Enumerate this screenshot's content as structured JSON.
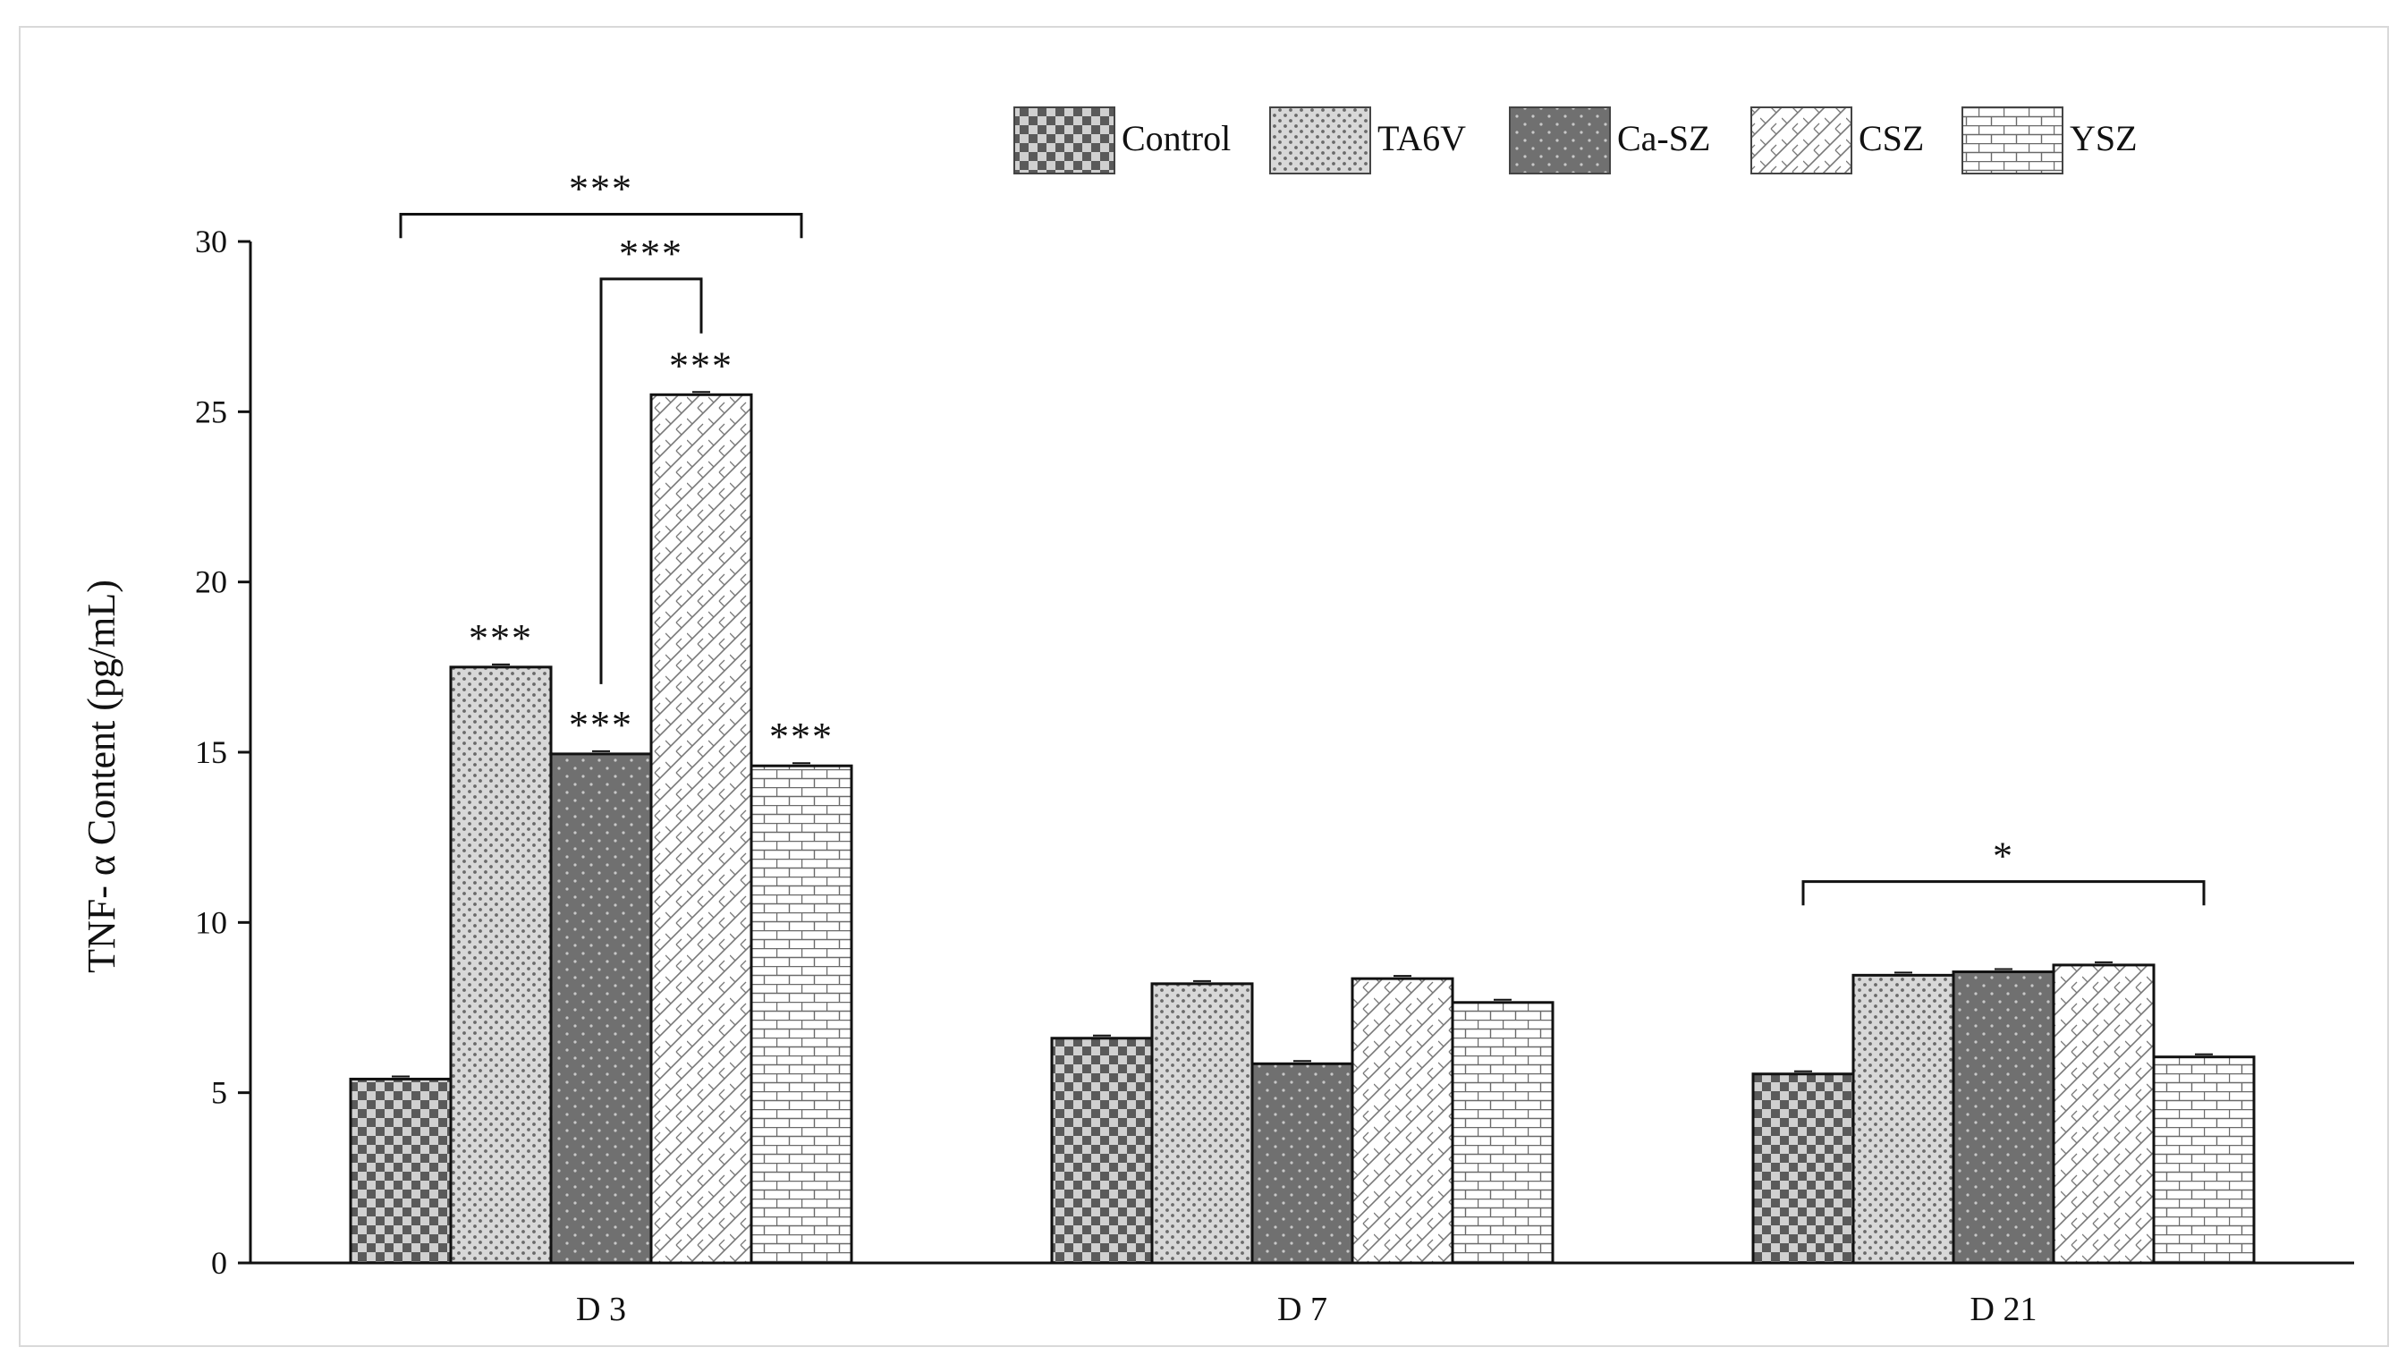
{
  "chart_data": {
    "type": "bar",
    "title": "",
    "xlabel": "",
    "ylabel": "TNF- α  Content (pg/mL)",
    "ylim": [
      0,
      30
    ],
    "yticks": [
      0,
      5,
      10,
      15,
      20,
      25,
      30
    ],
    "grid": false,
    "legend_position": "top-right",
    "categories": [
      "D 3",
      "D 7",
      "D 21"
    ],
    "series": [
      {
        "name": "Control",
        "pattern": "checker",
        "values": [
          5.4,
          6.6,
          5.55
        ]
      },
      {
        "name": "TA6V",
        "pattern": "dots",
        "values": [
          17.5,
          8.2,
          8.45
        ]
      },
      {
        "name": "Ca-SZ",
        "pattern": "dark-dots",
        "values": [
          14.95,
          5.85,
          8.55
        ]
      },
      {
        "name": "CSZ",
        "pattern": "diagonal-weave",
        "values": [
          25.5,
          8.35,
          8.75
        ]
      },
      {
        "name": "YSZ",
        "pattern": "brick",
        "values": [
          14.6,
          7.65,
          6.05
        ]
      }
    ],
    "annotations": [
      {
        "type": "label",
        "text": "***",
        "category": "D 3",
        "series": "TA6V"
      },
      {
        "type": "label",
        "text": "***",
        "category": "D 3",
        "series": "Ca-SZ"
      },
      {
        "type": "label",
        "text": "***",
        "category": "D 3",
        "series": "CSZ"
      },
      {
        "type": "label",
        "text": "***",
        "category": "D 3",
        "series": "YSZ"
      },
      {
        "type": "bracket",
        "text": "***",
        "category": "D 3",
        "from_series": "Ca-SZ",
        "to_series": "CSZ",
        "y": 28.9,
        "left_end": 17.0,
        "right_end": 27.3
      },
      {
        "type": "bracket",
        "text": "***",
        "category": "D 3",
        "from_series": "Control",
        "to_series": "YSZ",
        "y": 30.8,
        "left_end": 30.1,
        "right_end": 30.1
      },
      {
        "type": "bracket",
        "text": "*",
        "category": "D 21",
        "from_series": "Control",
        "to_series": "YSZ",
        "y": 11.2,
        "left_end": 10.5,
        "right_end": 10.5
      }
    ]
  }
}
